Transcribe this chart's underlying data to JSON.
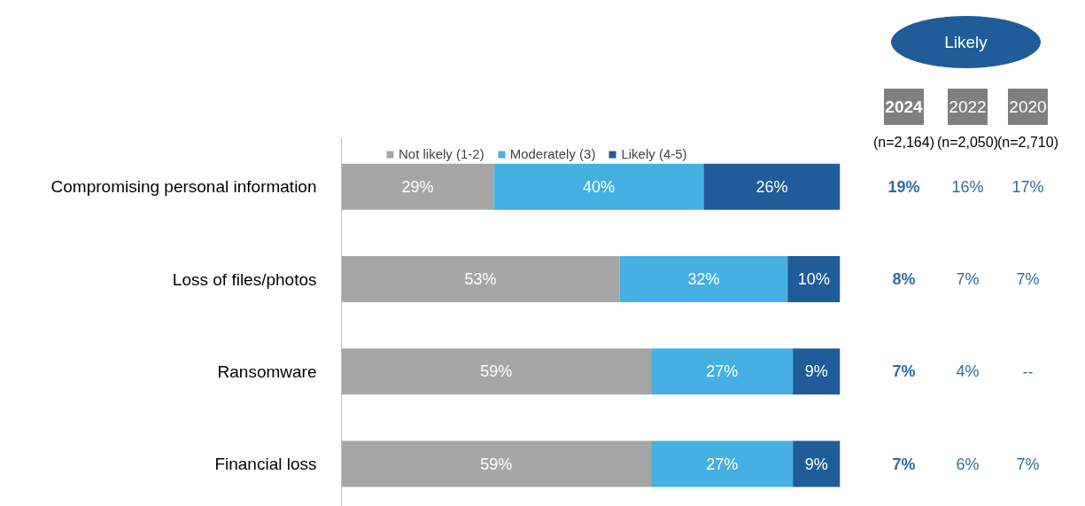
{
  "chart_data": {
    "type": "bar",
    "orientation": "horizontal",
    "stacked": true,
    "legend": "top",
    "grid": false,
    "categories": [
      "Compromising personal information",
      "Loss of files/photos",
      "Ransomware",
      "Financial loss"
    ],
    "tick_labels": "y",
    "series": [
      {
        "name": "Not likely (1-2)",
        "color": "#a6a6a6",
        "values": [
          29,
          53,
          59,
          59
        ],
        "value_labels": [
          "29%",
          "53%",
          "59%",
          "59%"
        ]
      },
      {
        "name": "Moderately (3)",
        "color": "#45b0e1",
        "values": [
          40,
          32,
          27,
          27
        ],
        "value_labels": [
          "40%",
          "32%",
          "27%",
          "27%"
        ]
      },
      {
        "name": "Likely (4-5)",
        "color": "#1f5c99",
        "values": [
          26,
          10,
          9,
          9
        ],
        "value_labels": [
          "26%",
          "10%",
          "9%",
          "9%"
        ]
      }
    ],
    "annotations": [
      "Likely",
      "2024",
      "2022",
      "2020",
      "(n=2,164)",
      "(n=2,050)",
      "(n=2,710)",
      "19%",
      "16%",
      "17%",
      "8%",
      "7%",
      "7%",
      "7%",
      "4%",
      "--",
      "7%",
      "6%",
      "7%"
    ]
  }
}
